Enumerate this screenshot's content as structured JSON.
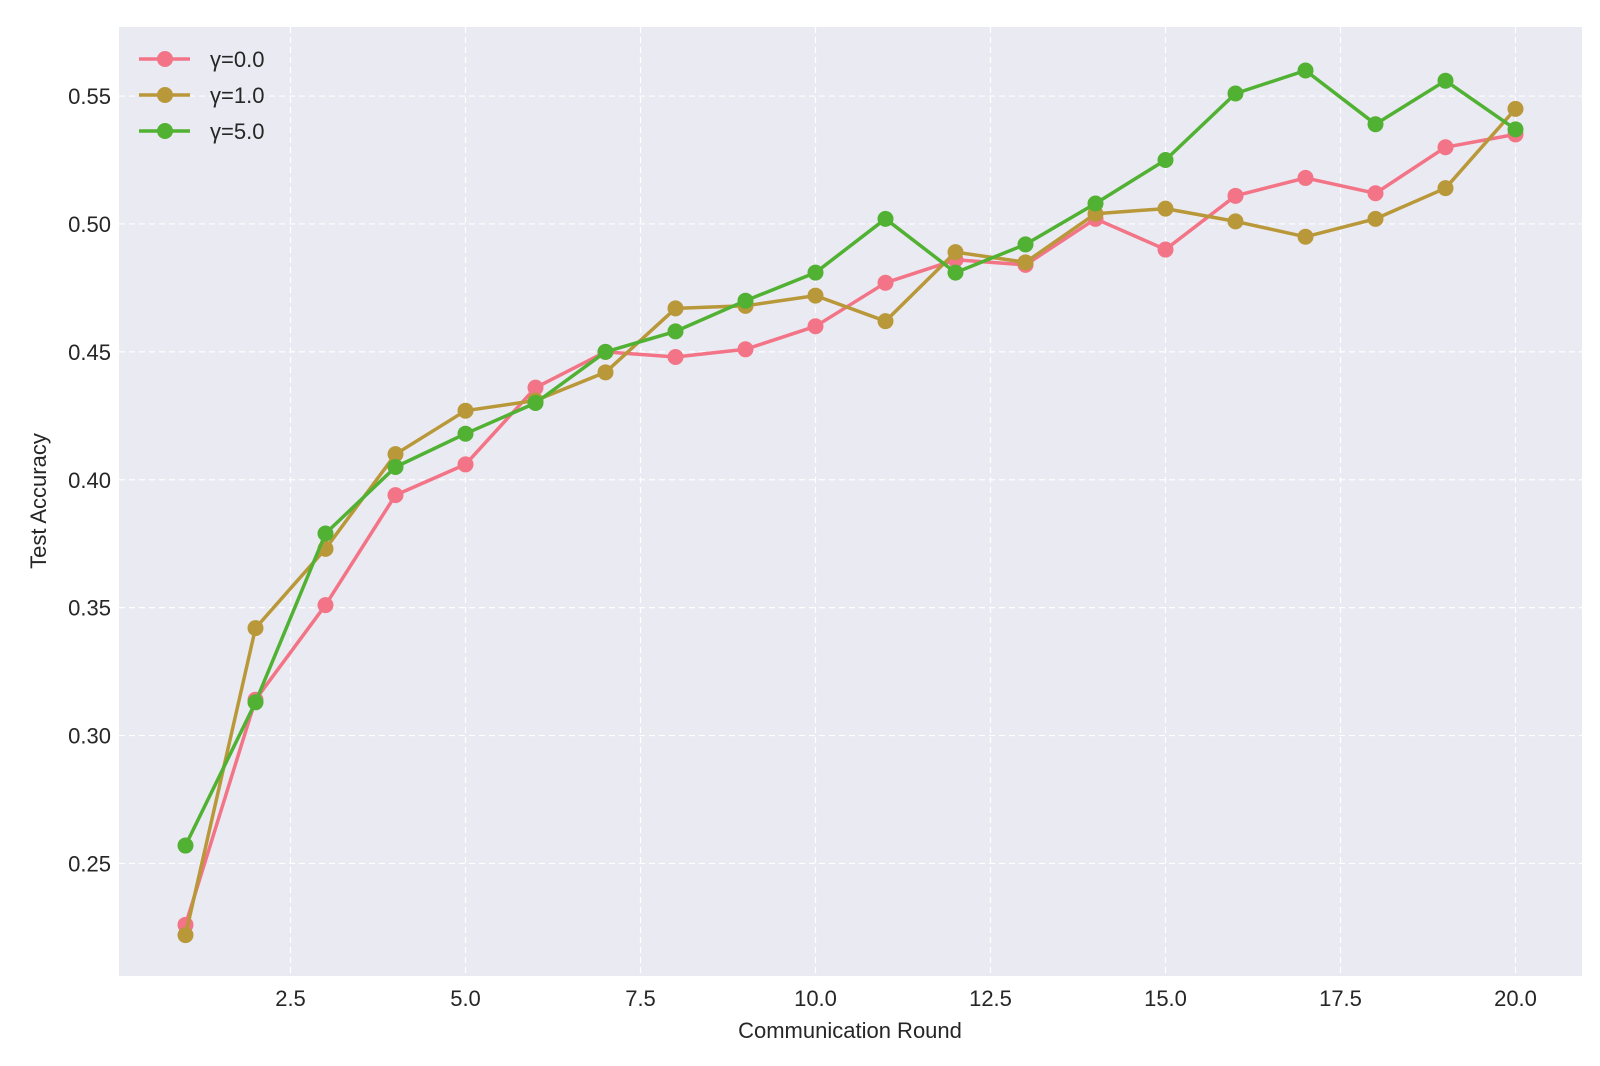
{
  "chart_data": {
    "type": "line",
    "title": "",
    "xlabel": "Communication Round",
    "ylabel": "Test Accuracy",
    "xlim": [
      0.05,
      20.95
    ],
    "ylim": [
      0.206,
      0.577
    ],
    "x_ticks": [
      2.5,
      5.0,
      7.5,
      10.0,
      12.5,
      15.0,
      17.5,
      20.0
    ],
    "x_tick_labels": [
      "2.5",
      "5.0",
      "7.5",
      "10.0",
      "12.5",
      "15.0",
      "17.5",
      "20.0"
    ],
    "y_ticks": [
      0.25,
      0.3,
      0.35,
      0.4,
      0.45,
      0.5,
      0.55
    ],
    "y_tick_labels": [
      "0.25",
      "0.30",
      "0.35",
      "0.40",
      "0.45",
      "0.50",
      "0.55"
    ],
    "grid": true,
    "legend_position": "top-left",
    "x": [
      1,
      2,
      3,
      4,
      5,
      6,
      7,
      8,
      9,
      10,
      11,
      12,
      13,
      14,
      15,
      16,
      17,
      18,
      19,
      20
    ],
    "series": [
      {
        "name": "γ=0.0",
        "color": "#f27486",
        "values": [
          0.226,
          0.314,
          0.351,
          0.394,
          0.406,
          0.436,
          0.45,
          0.448,
          0.451,
          0.46,
          0.477,
          0.486,
          0.484,
          0.502,
          0.49,
          0.511,
          0.518,
          0.512,
          0.53,
          0.535
        ]
      },
      {
        "name": "γ=1.0",
        "color": "#b99839",
        "values": [
          0.222,
          0.342,
          0.373,
          0.41,
          0.427,
          0.431,
          0.442,
          0.467,
          0.468,
          0.472,
          0.462,
          0.489,
          0.485,
          0.504,
          0.506,
          0.501,
          0.495,
          0.502,
          0.514,
          0.545
        ]
      },
      {
        "name": "γ=5.0",
        "color": "#50b132",
        "values": [
          0.257,
          0.313,
          0.379,
          0.405,
          0.418,
          0.43,
          0.45,
          0.458,
          0.47,
          0.481,
          0.502,
          0.481,
          0.492,
          0.508,
          0.525,
          0.551,
          0.56,
          0.539,
          0.556,
          0.537
        ]
      }
    ]
  }
}
